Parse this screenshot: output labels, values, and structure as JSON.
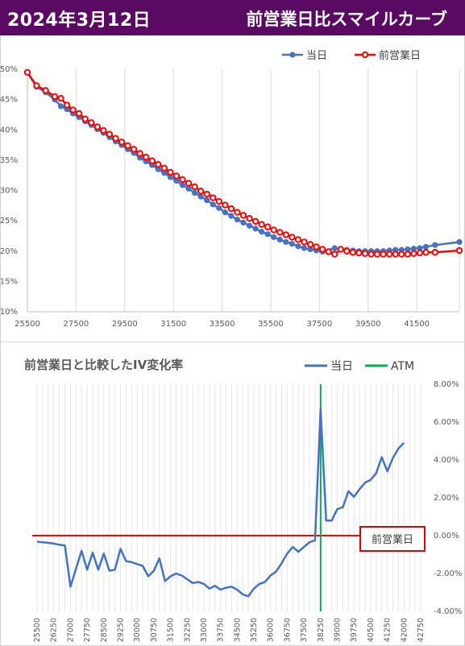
{
  "header": {
    "date_title": "2024年3月12日",
    "chart_title": "前営業日比スマイルカーブ"
  },
  "chart_data": [
    {
      "type": "line",
      "title": "",
      "xlabel": "",
      "ylabel": "",
      "xlim": [
        25500,
        43250
      ],
      "ylim": [
        0.1,
        0.5
      ],
      "x_ticks": [
        "25500",
        "27500",
        "29500",
        "31500",
        "33500",
        "35500",
        "37500",
        "39500",
        "41500"
      ],
      "y_ticks": [
        "10%",
        "15%",
        "20%",
        "25%",
        "30%",
        "35%",
        "40%",
        "45%",
        "50%"
      ],
      "grid": "vertical",
      "legend": "top-right",
      "series": [
        {
          "name": "当日",
          "color": "#4472c4",
          "points": [
            [
              25500,
              0.495
            ],
            [
              25875,
              0.471
            ],
            [
              26250,
              0.462
            ],
            [
              26625,
              0.45
            ],
            [
              26875,
              0.439
            ],
            [
              27125,
              0.434
            ],
            [
              27375,
              0.427
            ],
            [
              27625,
              0.421
            ],
            [
              27875,
              0.414
            ],
            [
              28125,
              0.408
            ],
            [
              28375,
              0.401
            ],
            [
              28625,
              0.395
            ],
            [
              28875,
              0.388
            ],
            [
              29125,
              0.381
            ],
            [
              29375,
              0.375
            ],
            [
              29625,
              0.368
            ],
            [
              29875,
              0.362
            ],
            [
              30125,
              0.354
            ],
            [
              30375,
              0.348
            ],
            [
              30625,
              0.342
            ],
            [
              30875,
              0.335
            ],
            [
              31125,
              0.329
            ],
            [
              31375,
              0.322
            ],
            [
              31625,
              0.316
            ],
            [
              31875,
              0.309
            ],
            [
              32125,
              0.303
            ],
            [
              32375,
              0.296
            ],
            [
              32625,
              0.29
            ],
            [
              32875,
              0.284
            ],
            [
              33125,
              0.277
            ],
            [
              33375,
              0.271
            ],
            [
              33625,
              0.264
            ],
            [
              33875,
              0.258
            ],
            [
              34125,
              0.252
            ],
            [
              34375,
              0.247
            ],
            [
              34625,
              0.242
            ],
            [
              34875,
              0.237
            ],
            [
              35125,
              0.232
            ],
            [
              35375,
              0.228
            ],
            [
              35625,
              0.223
            ],
            [
              35875,
              0.219
            ],
            [
              36125,
              0.215
            ],
            [
              36375,
              0.212
            ],
            [
              36625,
              0.208
            ],
            [
              36875,
              0.205
            ],
            [
              37125,
              0.203
            ],
            [
              37375,
              0.201
            ],
            [
              37625,
              0.199
            ],
            [
              38125,
              0.205
            ],
            [
              38375,
              0.203
            ],
            [
              38625,
              0.202
            ],
            [
              38875,
              0.201
            ],
            [
              39125,
              0.2
            ],
            [
              39375,
              0.2
            ],
            [
              39625,
              0.2
            ],
            [
              39875,
              0.2
            ],
            [
              40125,
              0.2
            ],
            [
              40375,
              0.201
            ],
            [
              40625,
              0.202
            ],
            [
              40875,
              0.202
            ],
            [
              41125,
              0.203
            ],
            [
              41375,
              0.204
            ],
            [
              41625,
              0.205
            ],
            [
              41875,
              0.207
            ],
            [
              42250,
              0.21
            ],
            [
              43250,
              0.215
            ]
          ]
        },
        {
          "name": "前営業日",
          "color": "#ff0000",
          "points": [
            [
              25500,
              0.495
            ],
            [
              25875,
              0.473
            ],
            [
              26250,
              0.465
            ],
            [
              26625,
              0.455
            ],
            [
              26875,
              0.452
            ],
            [
              27125,
              0.441
            ],
            [
              27375,
              0.433
            ],
            [
              27625,
              0.427
            ],
            [
              27875,
              0.418
            ],
            [
              28125,
              0.412
            ],
            [
              28375,
              0.405
            ],
            [
              28625,
              0.399
            ],
            [
              28875,
              0.393
            ],
            [
              29125,
              0.386
            ],
            [
              29375,
              0.38
            ],
            [
              29625,
              0.374
            ],
            [
              29875,
              0.368
            ],
            [
              30125,
              0.361
            ],
            [
              30375,
              0.355
            ],
            [
              30625,
              0.349
            ],
            [
              30875,
              0.343
            ],
            [
              31125,
              0.337
            ],
            [
              31375,
              0.33
            ],
            [
              31625,
              0.324
            ],
            [
              31875,
              0.318
            ],
            [
              32125,
              0.312
            ],
            [
              32375,
              0.306
            ],
            [
              32625,
              0.299
            ],
            [
              32875,
              0.294
            ],
            [
              33125,
              0.288
            ],
            [
              33375,
              0.282
            ],
            [
              33625,
              0.276
            ],
            [
              33875,
              0.27
            ],
            [
              34125,
              0.264
            ],
            [
              34375,
              0.259
            ],
            [
              34625,
              0.254
            ],
            [
              34875,
              0.249
            ],
            [
              35125,
              0.244
            ],
            [
              35375,
              0.24
            ],
            [
              35625,
              0.235
            ],
            [
              35875,
              0.231
            ],
            [
              36125,
              0.227
            ],
            [
              36375,
              0.223
            ],
            [
              36625,
              0.219
            ],
            [
              36875,
              0.215
            ],
            [
              37125,
              0.211
            ],
            [
              37375,
              0.207
            ],
            [
              37625,
              0.203
            ],
            [
              37875,
              0.199
            ],
            [
              38125,
              0.195
            ],
            [
              38375,
              0.203
            ],
            [
              38625,
              0.2
            ],
            [
              38875,
              0.198
            ],
            [
              39125,
              0.197
            ],
            [
              39375,
              0.196
            ],
            [
              39625,
              0.195
            ],
            [
              39875,
              0.195
            ],
            [
              40125,
              0.195
            ],
            [
              40375,
              0.195
            ],
            [
              40625,
              0.195
            ],
            [
              40875,
              0.195
            ],
            [
              41125,
              0.195
            ],
            [
              41375,
              0.196
            ],
            [
              41625,
              0.197
            ],
            [
              41875,
              0.198
            ],
            [
              42250,
              0.198
            ],
            [
              43250,
              0.201
            ]
          ]
        }
      ]
    },
    {
      "type": "line",
      "title": "前営業日と比較したIV変化率",
      "xlabel": "",
      "ylabel": "",
      "xlim": [
        25500,
        42750
      ],
      "ylim": [
        -0.04,
        0.08
      ],
      "x_ticks": [
        "25500",
        "26250",
        "27000",
        "27750",
        "28500",
        "29250",
        "30000",
        "30750",
        "31500",
        "32250",
        "33000",
        "33750",
        "34500",
        "35250",
        "36000",
        "36750",
        "37500",
        "38250",
        "39000",
        "39750",
        "40500",
        "41250",
        "42000",
        "42750"
      ],
      "y_ticks": [
        "-4.00%",
        "-2.00%",
        "0.00%",
        "2.00%",
        "4.00%",
        "6.00%",
        "8.00%"
      ],
      "y_axis_side": "right",
      "grid": "vertical",
      "legend": "top-right",
      "atm_strike": 38250,
      "reference_line": {
        "label": "前営業日",
        "value": 0,
        "color": "#ff0000"
      },
      "series": [
        {
          "name": "当日",
          "color": "#4472c4",
          "points": [
            [
              25500,
              -0.0032
            ],
            [
              25750,
              -0.0035
            ],
            [
              26000,
              -0.0038
            ],
            [
              26250,
              -0.0042
            ],
            [
              26500,
              -0.0048
            ],
            [
              26750,
              -0.0052
            ],
            [
              27000,
              -0.027
            ],
            [
              27250,
              -0.0175
            ],
            [
              27500,
              -0.008
            ],
            [
              27750,
              -0.018
            ],
            [
              28000,
              -0.009
            ],
            [
              28250,
              -0.018
            ],
            [
              28500,
              -0.0095
            ],
            [
              28750,
              -0.0185
            ],
            [
              29000,
              -0.018
            ],
            [
              29250,
              -0.007
            ],
            [
              29500,
              -0.0135
            ],
            [
              29750,
              -0.014
            ],
            [
              30000,
              -0.015
            ],
            [
              30250,
              -0.016
            ],
            [
              30500,
              -0.0215
            ],
            [
              30750,
              -0.0185
            ],
            [
              31000,
              -0.012
            ],
            [
              31250,
              -0.024
            ],
            [
              31500,
              -0.0215
            ],
            [
              31750,
              -0.02
            ],
            [
              32000,
              -0.021
            ],
            [
              32250,
              -0.023
            ],
            [
              32500,
              -0.025
            ],
            [
              32750,
              -0.0245
            ],
            [
              33000,
              -0.0255
            ],
            [
              33250,
              -0.028
            ],
            [
              33500,
              -0.0265
            ],
            [
              33750,
              -0.0285
            ],
            [
              34000,
              -0.0275
            ],
            [
              34250,
              -0.027
            ],
            [
              34500,
              -0.0285
            ],
            [
              34750,
              -0.031
            ],
            [
              35000,
              -0.032
            ],
            [
              35250,
              -0.028
            ],
            [
              35500,
              -0.0255
            ],
            [
              35750,
              -0.0245
            ],
            [
              36000,
              -0.021
            ],
            [
              36250,
              -0.019
            ],
            [
              36500,
              -0.0145
            ],
            [
              36750,
              -0.0095
            ],
            [
              37000,
              -0.006
            ],
            [
              37250,
              -0.0085
            ],
            [
              37500,
              -0.006
            ],
            [
              37750,
              -0.0035
            ],
            [
              38000,
              -0.0025
            ],
            [
              38250,
              0.067
            ],
            [
              38500,
              0.008
            ],
            [
              38750,
              0.008
            ],
            [
              39000,
              0.014
            ],
            [
              39250,
              0.015
            ],
            [
              39500,
              0.0235
            ],
            [
              39750,
              0.0205
            ],
            [
              40000,
              0.0245
            ],
            [
              40250,
              0.028
            ],
            [
              40500,
              0.0295
            ],
            [
              40750,
              0.033
            ],
            [
              41000,
              0.0415
            ],
            [
              41250,
              0.034
            ],
            [
              41500,
              0.041
            ],
            [
              41750,
              0.046
            ],
            [
              42000,
              0.049
            ]
          ]
        }
      ],
      "atm_series": {
        "name": "ATM",
        "color": "#00b050"
      }
    }
  ]
}
